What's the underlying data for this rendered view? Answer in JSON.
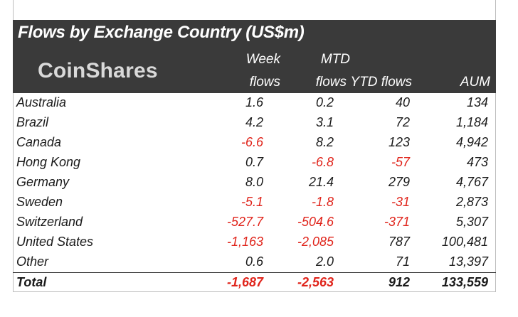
{
  "table": {
    "title": "Flows by Exchange Country (US$m)",
    "logo_text": "CoinShares",
    "headers": {
      "week_line1": "Week",
      "week_line2": "flows",
      "mtd_line1": "MTD",
      "mtd_line2": "flows",
      "ytd": "YTD flows",
      "aum": "AUM"
    },
    "rows": [
      {
        "country": "Australia",
        "week": "1.6",
        "mtd": "0.2",
        "ytd": "40",
        "aum": "134"
      },
      {
        "country": "Brazil",
        "week": "4.2",
        "mtd": "3.1",
        "ytd": "72",
        "aum": "1,184"
      },
      {
        "country": "Canada",
        "week": "-6.6",
        "mtd": "8.2",
        "ytd": "123",
        "aum": "4,942"
      },
      {
        "country": "Hong Kong",
        "week": "0.7",
        "mtd": "-6.8",
        "ytd": "-57",
        "aum": "473"
      },
      {
        "country": "Germany",
        "week": "8.0",
        "mtd": "21.4",
        "ytd": "279",
        "aum": "4,767"
      },
      {
        "country": "Sweden",
        "week": "-5.1",
        "mtd": "-1.8",
        "ytd": "-31",
        "aum": "2,873"
      },
      {
        "country": "Switzerland",
        "week": "-527.7",
        "mtd": "-504.6",
        "ytd": "-371",
        "aum": "5,307"
      },
      {
        "country": "United States",
        "week": "-1,163",
        "mtd": "-2,085",
        "ytd": "787",
        "aum": "100,481"
      },
      {
        "country": "Other",
        "week": "0.6",
        "mtd": "2.0",
        "ytd": "71",
        "aum": "13,397"
      }
    ],
    "total": {
      "country": "Total",
      "week": "-1,687",
      "mtd": "-2,563",
      "ytd": "912",
      "aum": "133,559"
    }
  },
  "colors": {
    "header_bg": "#3a3a3a",
    "negative": "#e0241b",
    "text": "#1a1a1a"
  }
}
